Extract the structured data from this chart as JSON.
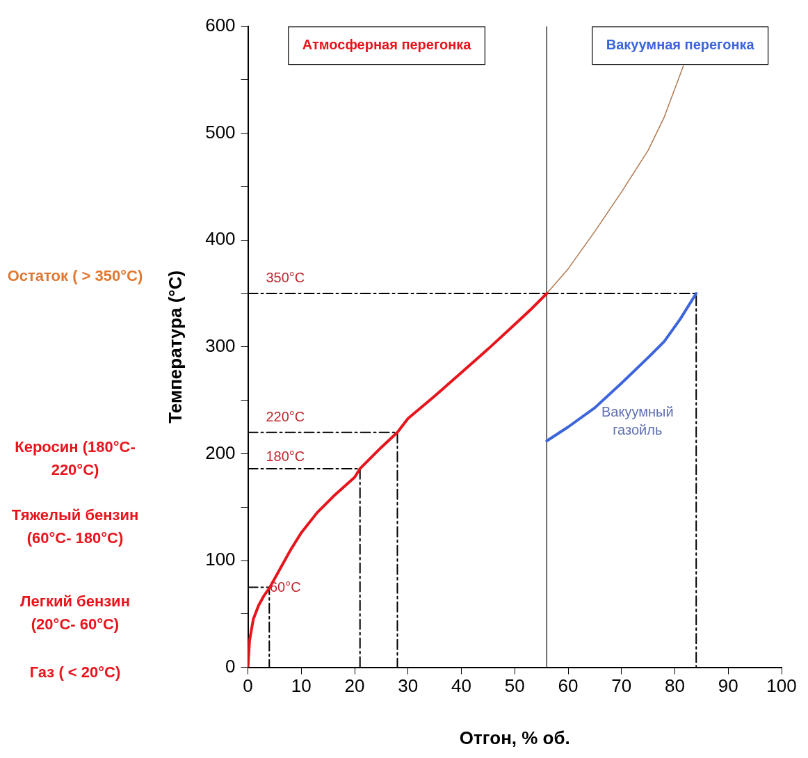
{
  "chart_data": {
    "type": "line",
    "xlabel": "Отгон, % об.",
    "ylabel": "Температура (°С)",
    "xlim": [
      0,
      100
    ],
    "xticks": [
      0,
      10,
      20,
      30,
      40,
      50,
      60,
      70,
      80,
      90,
      100
    ],
    "ylim": [
      0,
      600
    ],
    "yticks": [
      0,
      {
        "value": 50,
        "label": null
      },
      100,
      {
        "value": 150,
        "label": null
      },
      200,
      {
        "value": 250,
        "label": null
      },
      300,
      {
        "value": 350,
        "label": null
      },
      400,
      {
        "value": 450,
        "label": null
      },
      500,
      {
        "value": 550,
        "label": null
      },
      600
    ],
    "grid": false,
    "legend": false,
    "marker": "none",
    "series": [
      {
        "color": "#e8141c",
        "x": [
          0,
          0.3,
          1,
          2,
          3,
          4,
          6,
          8,
          10,
          13,
          16,
          20,
          21,
          25,
          28,
          30,
          35,
          40,
          45,
          50,
          53,
          56
        ],
        "values": [
          0,
          25,
          45,
          58,
          67,
          74,
          92,
          110,
          126,
          145,
          160,
          178,
          186,
          206,
          220,
          233,
          254,
          276,
          298,
          321,
          335,
          350
        ]
      },
      {
        "color": "#b07850",
        "x": [
          56,
          60,
          65,
          70,
          75,
          78,
          81.6
        ],
        "values": [
          350,
          373,
          408,
          445,
          484,
          515,
          563
        ]
      },
      {
        "color": "#3c64dc",
        "x": [
          56,
          60,
          65,
          70,
          75,
          78,
          81,
          84
        ],
        "values": [
          212,
          225,
          243,
          266,
          290,
          305,
          326,
          350
        ]
      },
      {
        "color": "#000000",
        "line_style": "dashed",
        "x": [
          0,
          4,
          4
        ],
        "values": [
          75,
          75,
          0
        ]
      },
      {
        "color": "#000000",
        "line_style": "dashed",
        "x": [
          0,
          21,
          21
        ],
        "values": [
          186,
          186,
          0
        ]
      },
      {
        "color": "#000000",
        "line_style": "dashed",
        "x": [
          0,
          28,
          28
        ],
        "values": [
          220,
          220,
          0
        ]
      },
      {
        "color": "#000000",
        "line_style": "dashed",
        "x": [
          0,
          56,
          84,
          84
        ],
        "values": [
          350,
          350,
          350,
          0
        ]
      }
    ],
    "ref_lines": [
      {
        "axis": "x",
        "value": 56,
        "color": "#000000"
      }
    ],
    "annotations": [
      "350°C",
      "220°C",
      "180°C",
      "60°C",
      "Атмосферная перегонка",
      "Вакуумная перегонка",
      "Вакуумный газойль",
      "Остаток ( > 350°C)",
      "Керосин (180°C- 220°C)",
      "Тяжелый бензин (60°C- 180°C)",
      "Легкий бензин (20°C- 60°C)",
      "Газ ( < 20°C)"
    ]
  }
}
